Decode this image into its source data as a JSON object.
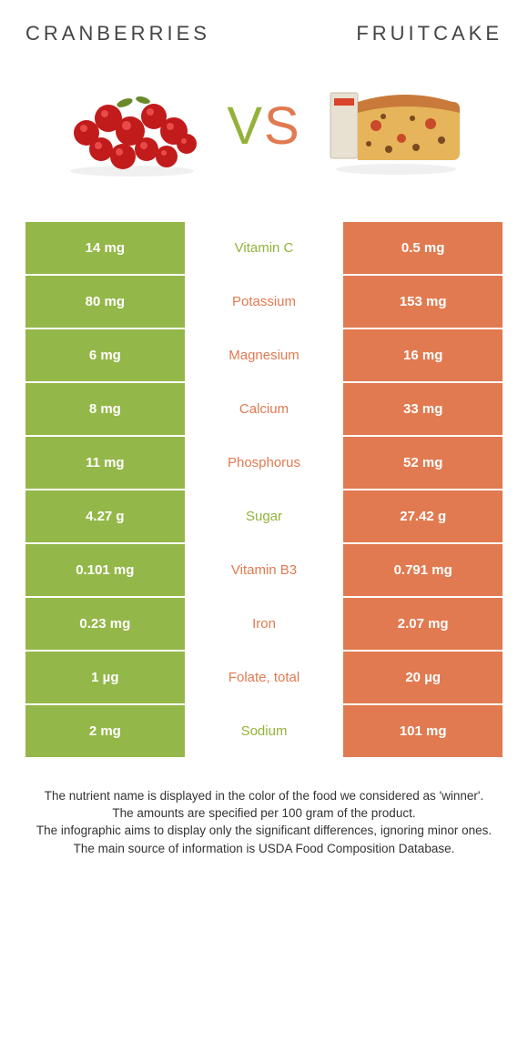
{
  "titles": {
    "left": "CRANBERRIES",
    "right": "FRUITCAKE"
  },
  "vs": {
    "v": "V",
    "s": "S"
  },
  "colors": {
    "left_bg": "#94b749",
    "right_bg": "#e17a50",
    "left_text": "#94b23b",
    "right_text": "#e17a50"
  },
  "rows": [
    {
      "left": "14 mg",
      "label": "Vitamin C",
      "right": "0.5 mg",
      "winner": "left"
    },
    {
      "left": "80 mg",
      "label": "Potassium",
      "right": "153 mg",
      "winner": "right"
    },
    {
      "left": "6 mg",
      "label": "Magnesium",
      "right": "16 mg",
      "winner": "right"
    },
    {
      "left": "8 mg",
      "label": "Calcium",
      "right": "33 mg",
      "winner": "right"
    },
    {
      "left": "11 mg",
      "label": "Phosphorus",
      "right": "52 mg",
      "winner": "right"
    },
    {
      "left": "4.27 g",
      "label": "Sugar",
      "right": "27.42 g",
      "winner": "left"
    },
    {
      "left": "0.101 mg",
      "label": "Vitamin B3",
      "right": "0.791 mg",
      "winner": "right"
    },
    {
      "left": "0.23 mg",
      "label": "Iron",
      "right": "2.07 mg",
      "winner": "right"
    },
    {
      "left": "1 µg",
      "label": "Folate, total",
      "right": "20 µg",
      "winner": "right"
    },
    {
      "left": "2 mg",
      "label": "Sodium",
      "right": "101 mg",
      "winner": "left"
    }
  ],
  "footnotes": [
    "The nutrient name is displayed in the color of the food we considered as 'winner'.",
    "The amounts are specified per 100 gram of the product.",
    "The infographic aims to display only the significant differences, ignoring minor ones.",
    "The main source of information is USDA Food Composition Database."
  ]
}
